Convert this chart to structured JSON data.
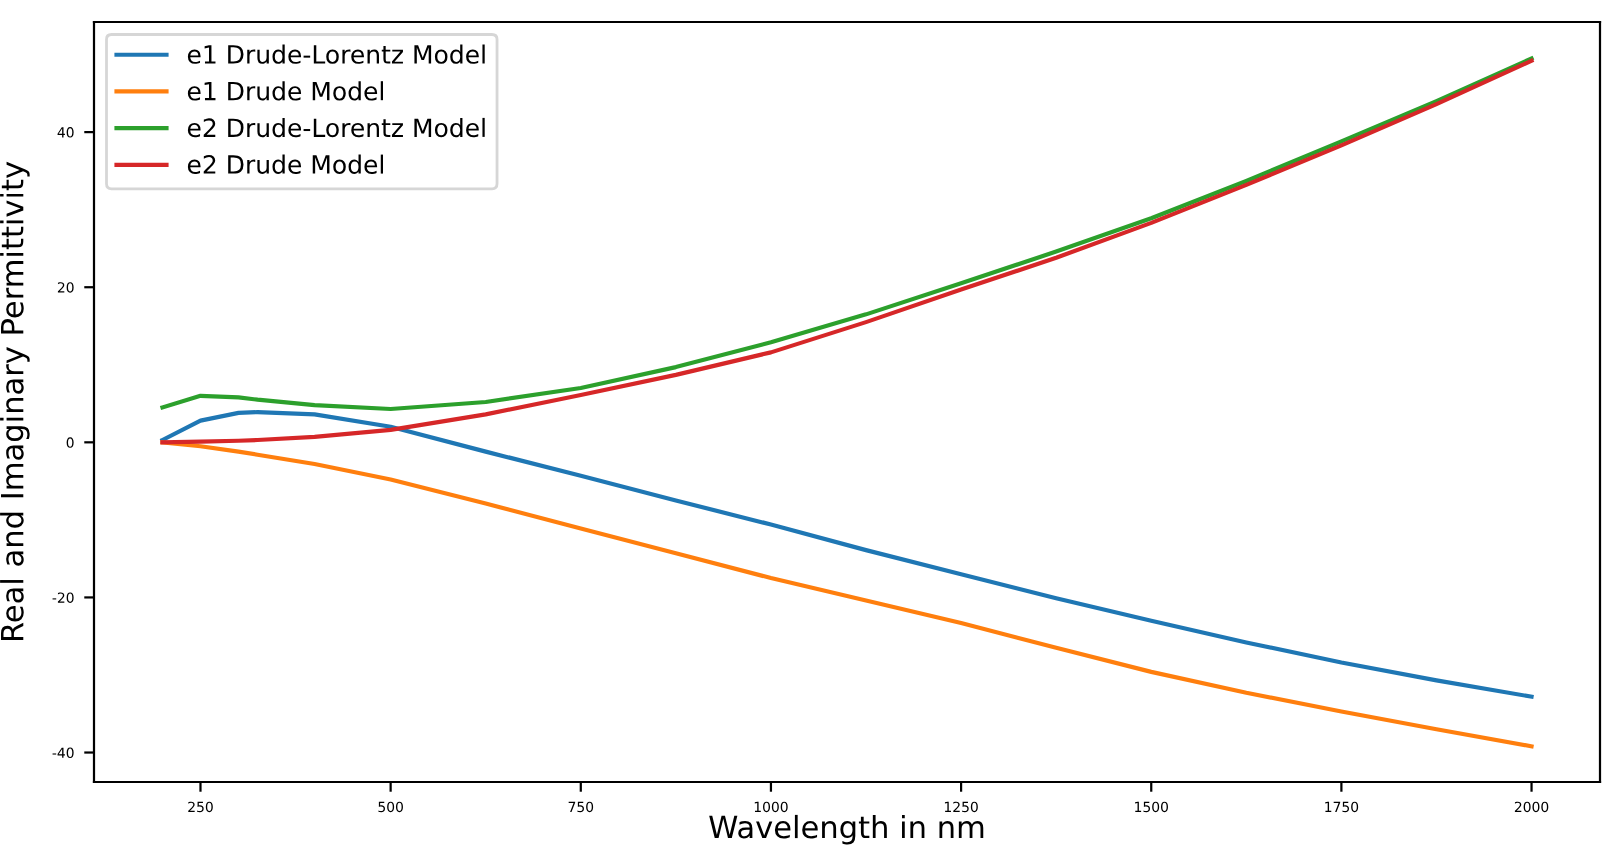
{
  "chart_data": {
    "type": "line",
    "xlabel": "Wavelength in nm",
    "ylabel": "Real and Imaginary Permittivity",
    "x": [
      200,
      250,
      300,
      325,
      400,
      500,
      625,
      750,
      875,
      1000,
      1125,
      1250,
      1375,
      1500,
      1625,
      1750,
      1875,
      2000
    ],
    "series": [
      {
        "name": "e1 Drude-Lorentz Model",
        "color": "#1f77b4",
        "values": [
          0.3,
          2.8,
          3.8,
          3.9,
          3.6,
          2.0,
          -1.2,
          -4.3,
          -7.5,
          -10.6,
          -13.9,
          -17,
          -20.1,
          -23,
          -25.8,
          -28.4,
          -30.7,
          -32.8
        ]
      },
      {
        "name": "e1 Drude Model",
        "color": "#ff7f0e",
        "values": [
          0,
          -0.5,
          -1.2,
          -1.6,
          -2.8,
          -4.8,
          -7.9,
          -11.1,
          -14.3,
          -17.5,
          -20.4,
          -23.3,
          -26.5,
          -29.6,
          -32.3,
          -34.7,
          -37.0,
          -39.2
        ]
      },
      {
        "name": "e2 Drude-Lorentz Model",
        "color": "#2ca02c",
        "values": [
          4.5,
          6.0,
          5.8,
          5.5,
          4.8,
          4.3,
          5.2,
          7.0,
          9.7,
          12.9,
          16.5,
          20.5,
          24.6,
          28.9,
          33.7,
          38.8,
          44.0,
          49.5
        ]
      },
      {
        "name": "e2 Drude Model",
        "color": "#d62728",
        "values": [
          0,
          0.1,
          0.2,
          0.3,
          0.7,
          1.6,
          3.6,
          6.1,
          8.7,
          11.6,
          15.5,
          19.7,
          23.8,
          28.3,
          33.2,
          38.3,
          43.6,
          49.2
        ]
      }
    ],
    "xlim": [
      110,
      2090
    ],
    "ylim": [
      -43.8,
      54.2
    ],
    "xticks": [
      250,
      500,
      750,
      1000,
      1250,
      1500,
      1750,
      2000
    ],
    "yticks": [
      -40,
      -20,
      0,
      20,
      40
    ],
    "legend": "top left",
    "grid": false
  }
}
